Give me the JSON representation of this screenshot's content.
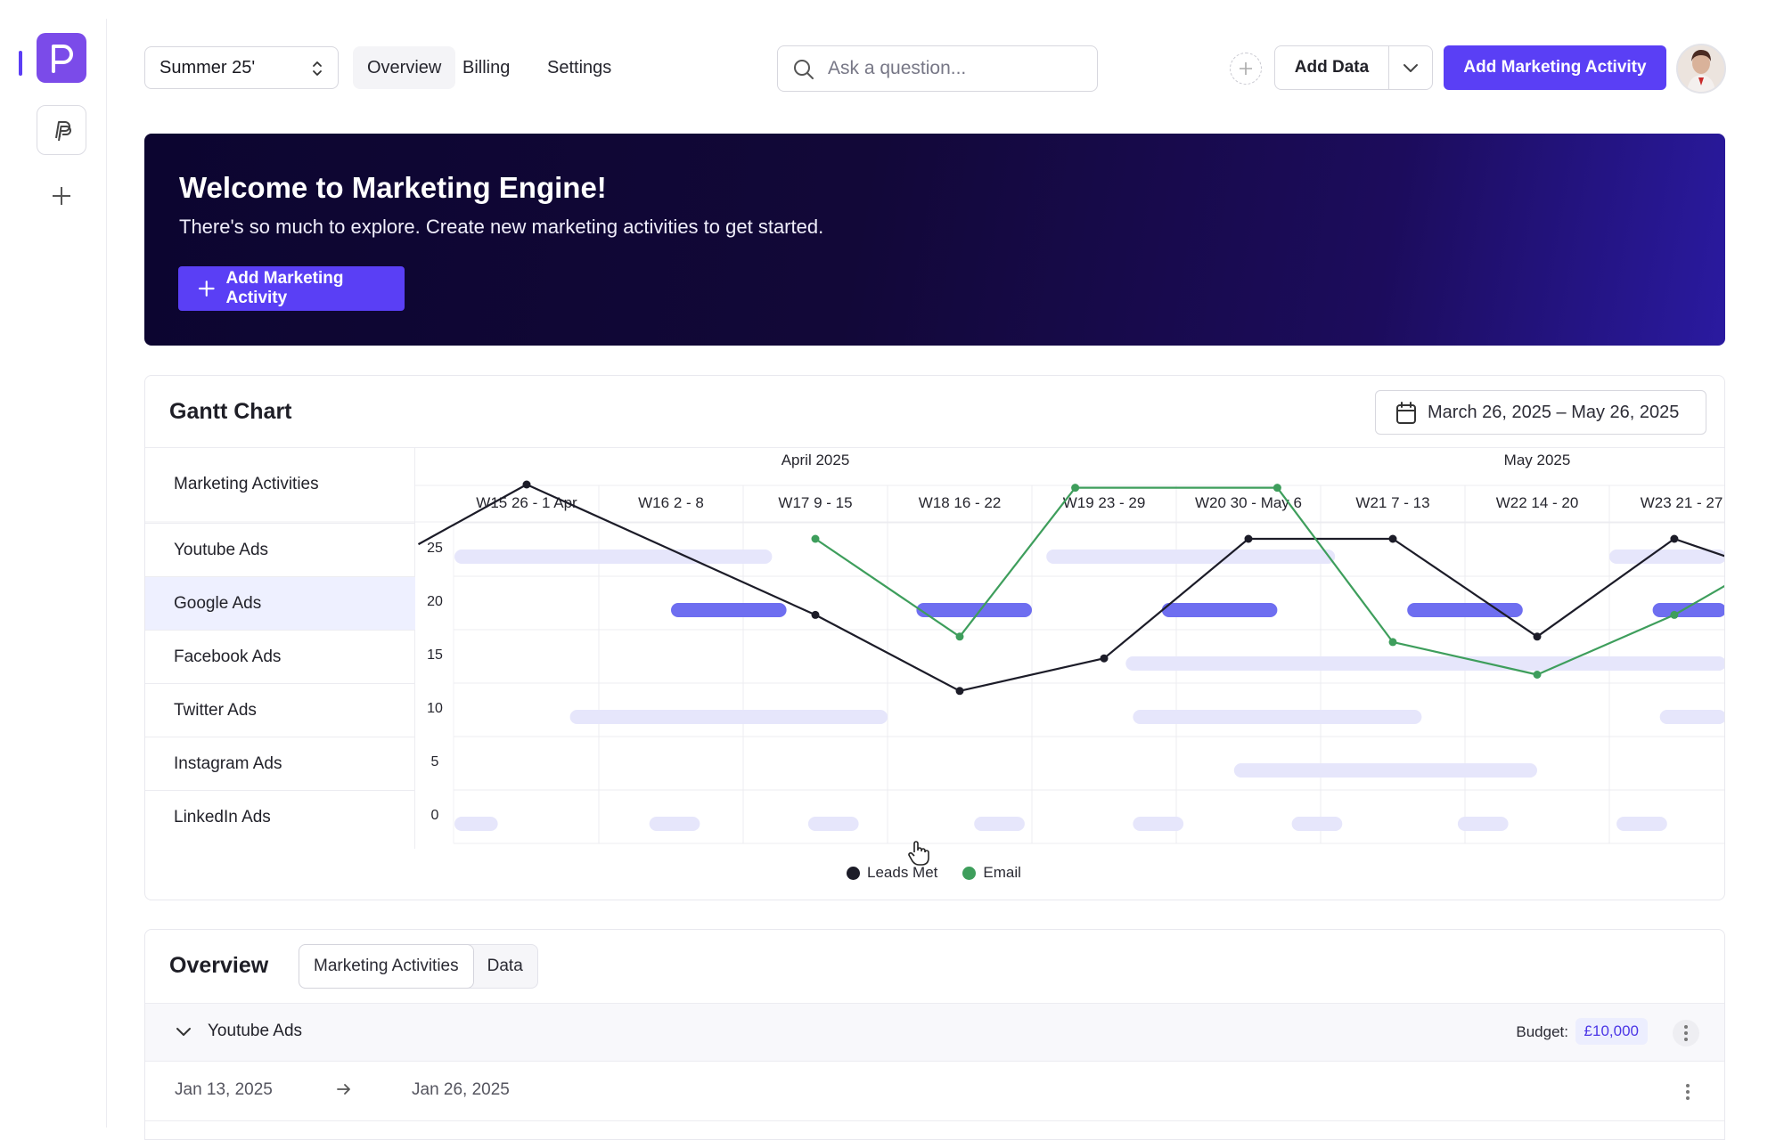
{
  "header": {
    "season": "Summer 25'",
    "tabs": [
      {
        "label": "Overview"
      },
      {
        "label": "Billing"
      },
      {
        "label": "Settings"
      }
    ],
    "search_placeholder": "Ask a question...",
    "add_data_label": "Add Data",
    "primary_label": "Add Marketing Activity"
  },
  "banner": {
    "title": "Welcome to Marketing Engine!",
    "subtitle": "There's so much to explore. Create new marketing activities to get started.",
    "button_label": "Add Marketing Activity"
  },
  "gantt": {
    "title": "Gantt Chart",
    "date_range": "March 26, 2025 – May 26, 2025",
    "activities_header": "Marketing Activities",
    "activities": [
      "Youtube Ads",
      "Google Ads",
      "Facebook Ads",
      "Twitter Ads",
      "Instagram Ads",
      "LinkedIn Ads"
    ],
    "months": [
      "April 2025",
      "May 2025"
    ],
    "weeks": [
      "W15 26 - 1 Apr",
      "W16 2 - 8",
      "W17 9 - 15",
      "W18 16 - 22",
      "W19 23 - 29",
      "W20 30 - May 6",
      "W21 7 - 13",
      "W22 14 - 20",
      "W23 21 - 27"
    ]
  },
  "chart_data": {
    "type": "line",
    "y_ticks": [
      "25",
      "20",
      "15",
      "10",
      "5",
      "0"
    ],
    "ylim": [
      0,
      25
    ],
    "series": [
      {
        "name": "Leads Met",
        "color": "#1c1c28",
        "points": [
          [
            -0.25,
            19.5
          ],
          [
            0.5,
            25
          ],
          [
            2.5,
            13
          ],
          [
            3.5,
            6
          ],
          [
            4.5,
            9
          ],
          [
            5.5,
            20
          ],
          [
            6.5,
            20
          ],
          [
            7.5,
            11
          ],
          [
            8.45,
            20
          ],
          [
            9.0,
            17.5
          ]
        ]
      },
      {
        "name": "Email",
        "color": "#3e9e5c",
        "points": [
          [
            2.5,
            20
          ],
          [
            3.5,
            11
          ],
          [
            4.3,
            24.7
          ],
          [
            5.7,
            24.7
          ],
          [
            6.5,
            10.5
          ],
          [
            7.5,
            7.5
          ],
          [
            8.45,
            13
          ],
          [
            9.3,
            19.5
          ]
        ]
      }
    ],
    "bars": [
      {
        "row": 0,
        "start": 0.0,
        "end": 2.2,
        "tone": "light"
      },
      {
        "row": 0,
        "start": 4.1,
        "end": 6.1,
        "tone": "light"
      },
      {
        "row": 0,
        "start": 8.0,
        "end": 9.0,
        "tone": "light"
      },
      {
        "row": 1,
        "start": 1.5,
        "end": 2.3,
        "tone": "strong"
      },
      {
        "row": 1,
        "start": 3.2,
        "end": 4.0,
        "tone": "strong"
      },
      {
        "row": 1,
        "start": 4.9,
        "end": 5.7,
        "tone": "strong"
      },
      {
        "row": 1,
        "start": 6.6,
        "end": 7.4,
        "tone": "strong"
      },
      {
        "row": 1,
        "start": 8.3,
        "end": 9.0,
        "tone": "strong"
      },
      {
        "row": 2,
        "start": 4.65,
        "end": 9.0,
        "tone": "light"
      },
      {
        "row": 3,
        "start": 0.8,
        "end": 3.0,
        "tone": "light"
      },
      {
        "row": 3,
        "start": 4.7,
        "end": 6.7,
        "tone": "light"
      },
      {
        "row": 3,
        "start": 8.35,
        "end": 9.0,
        "tone": "light"
      },
      {
        "row": 4,
        "start": 5.4,
        "end": 7.5,
        "tone": "light"
      },
      {
        "row": 5,
        "start": 0.0,
        "end": 0.3,
        "tone": "light"
      },
      {
        "row": 5,
        "start": 1.35,
        "end": 1.7,
        "tone": "light"
      },
      {
        "row": 5,
        "start": 2.45,
        "end": 2.8,
        "tone": "light"
      },
      {
        "row": 5,
        "start": 3.6,
        "end": 3.95,
        "tone": "light"
      },
      {
        "row": 5,
        "start": 4.7,
        "end": 5.05,
        "tone": "light"
      },
      {
        "row": 5,
        "start": 5.8,
        "end": 6.15,
        "tone": "light"
      },
      {
        "row": 5,
        "start": 6.95,
        "end": 7.3,
        "tone": "light"
      },
      {
        "row": 5,
        "start": 8.05,
        "end": 8.4,
        "tone": "light"
      }
    ],
    "legend": [
      {
        "name": "Leads Met",
        "color": "#1c1c28"
      },
      {
        "name": "Email",
        "color": "#3e9e5c"
      }
    ]
  },
  "overview": {
    "title": "Overview",
    "tabs": [
      {
        "label": "Marketing Activities"
      },
      {
        "label": "Data"
      }
    ],
    "group_name": "Youtube Ads",
    "budget_label": "Budget:",
    "budget_value": "£10,000",
    "row_start": "Jan 13, 2025",
    "row_end": "Jan 26, 2025"
  }
}
